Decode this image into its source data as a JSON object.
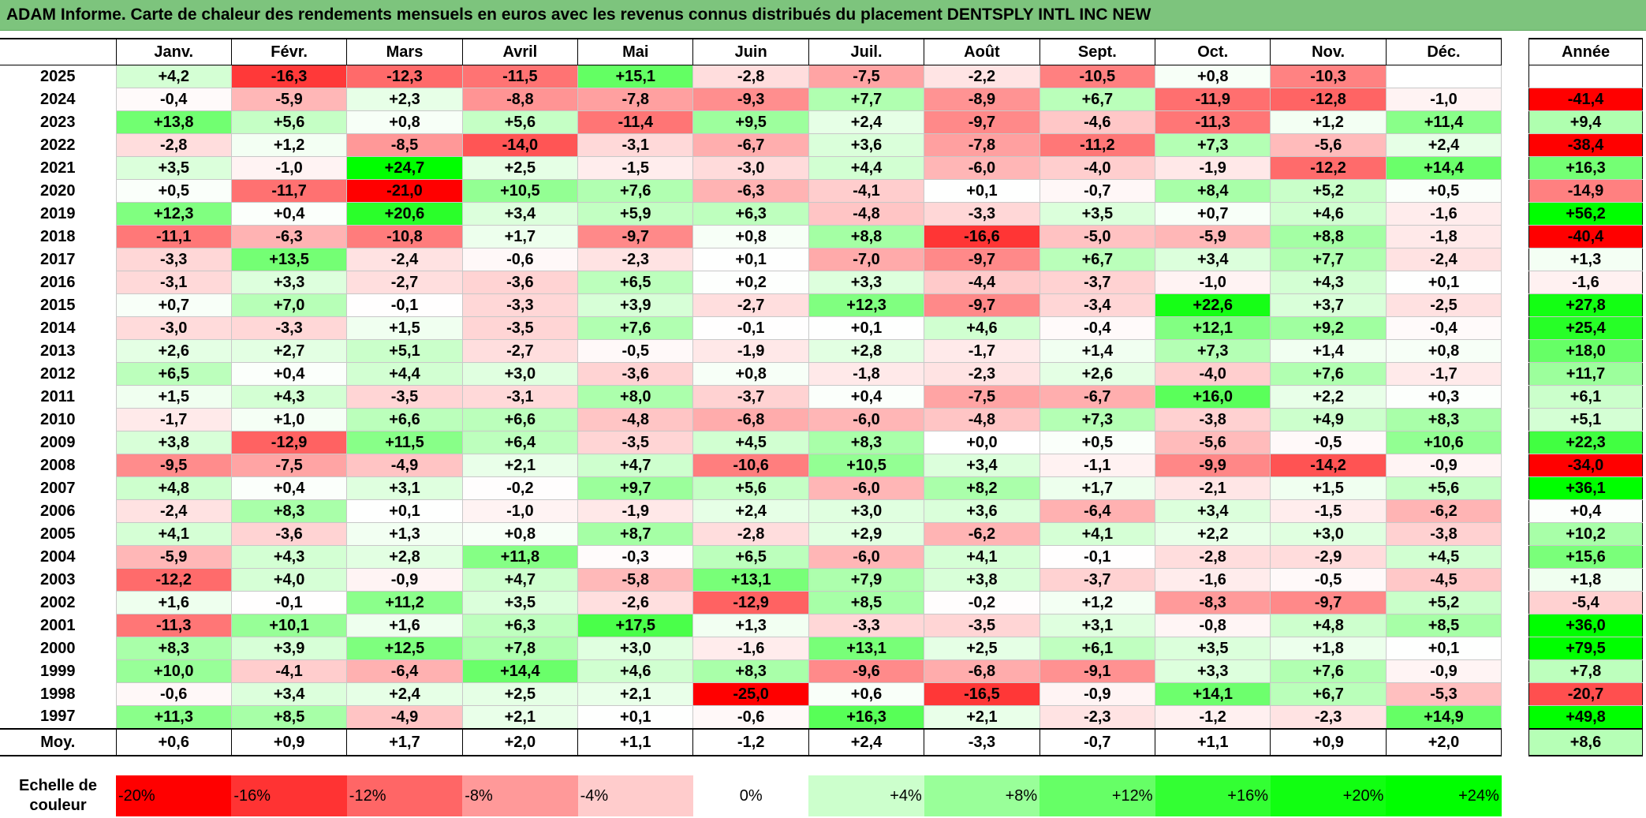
{
  "title": "ADAM Informe. Carte de chaleur des rendements mensuels en euros avec les revenus connus distribués du placement DENTSPLY INTL INC NEW",
  "chart_data": {
    "type": "heatmap",
    "title": "ADAM Informe. Carte de chaleur des rendements mensuels en euros avec les revenus connus distribués du placement DENTSPLY INTL INC NEW",
    "columns": [
      "Janv.",
      "Févr.",
      "Mars",
      "Avril",
      "Mai",
      "Juin",
      "Juil.",
      "Août",
      "Sept.",
      "Oct.",
      "Nov.",
      "Déc."
    ],
    "annual_header": "Année",
    "rows": [
      {
        "year": "2025",
        "values": [
          "+4,2",
          "-16,3",
          "-12,3",
          "-11,5",
          "+15,1",
          "-2,8",
          "-7,5",
          "-2,2",
          "-10,5",
          "+0,8",
          "-10,3",
          ""
        ],
        "annual": ""
      },
      {
        "year": "2024",
        "values": [
          "-0,4",
          "-5,9",
          "+2,3",
          "-8,8",
          "-7,8",
          "-9,3",
          "+7,7",
          "-8,9",
          "+6,7",
          "-11,9",
          "-12,8",
          "-1,0"
        ],
        "annual": "-41,4"
      },
      {
        "year": "2023",
        "values": [
          "+13,8",
          "+5,6",
          "+0,8",
          "+5,6",
          "-11,4",
          "+9,5",
          "+2,4",
          "-9,7",
          "-4,6",
          "-11,3",
          "+1,2",
          "+11,4"
        ],
        "annual": "+9,4"
      },
      {
        "year": "2022",
        "values": [
          "-2,8",
          "+1,2",
          "-8,5",
          "-14,0",
          "-3,1",
          "-6,7",
          "+3,6",
          "-7,8",
          "-11,2",
          "+7,3",
          "-5,6",
          "+2,4"
        ],
        "annual": "-38,4"
      },
      {
        "year": "2021",
        "values": [
          "+3,5",
          "-1,0",
          "+24,7",
          "+2,5",
          "-1,5",
          "-3,0",
          "+4,4",
          "-6,0",
          "-4,0",
          "-1,9",
          "-12,2",
          "+14,4"
        ],
        "annual": "+16,3"
      },
      {
        "year": "2020",
        "values": [
          "+0,5",
          "-11,7",
          "-21,0",
          "+10,5",
          "+7,6",
          "-6,3",
          "-4,1",
          "+0,1",
          "-0,7",
          "+8,4",
          "+5,2",
          "+0,5"
        ],
        "annual": "-14,9"
      },
      {
        "year": "2019",
        "values": [
          "+12,3",
          "+0,4",
          "+20,6",
          "+3,4",
          "+5,9",
          "+6,3",
          "-4,8",
          "-3,3",
          "+3,5",
          "+0,7",
          "+4,6",
          "-1,6"
        ],
        "annual": "+56,2"
      },
      {
        "year": "2018",
        "values": [
          "-11,1",
          "-6,3",
          "-10,8",
          "+1,7",
          "-9,7",
          "+0,8",
          "+8,8",
          "-16,6",
          "-5,0",
          "-5,9",
          "+8,8",
          "-1,8"
        ],
        "annual": "-40,4"
      },
      {
        "year": "2017",
        "values": [
          "-3,3",
          "+13,5",
          "-2,4",
          "-0,6",
          "-2,3",
          "+0,1",
          "-7,0",
          "-9,7",
          "+6,7",
          "+3,4",
          "+7,7",
          "-2,4"
        ],
        "annual": "+1,3"
      },
      {
        "year": "2016",
        "values": [
          "-3,1",
          "+3,3",
          "-2,7",
          "-3,6",
          "+6,5",
          "+0,2",
          "+3,3",
          "-4,4",
          "-3,7",
          "-1,0",
          "+4,3",
          "+0,1"
        ],
        "annual": "-1,6"
      },
      {
        "year": "2015",
        "values": [
          "+0,7",
          "+7,0",
          "-0,1",
          "-3,3",
          "+3,9",
          "-2,7",
          "+12,3",
          "-9,7",
          "-3,4",
          "+22,6",
          "+3,7",
          "-2,5"
        ],
        "annual": "+27,8"
      },
      {
        "year": "2014",
        "values": [
          "-3,0",
          "-3,3",
          "+1,5",
          "-3,5",
          "+7,6",
          "-0,1",
          "+0,1",
          "+4,6",
          "-0,4",
          "+12,1",
          "+9,2",
          "-0,4"
        ],
        "annual": "+25,4"
      },
      {
        "year": "2013",
        "values": [
          "+2,6",
          "+2,7",
          "+5,1",
          "-2,7",
          "-0,5",
          "-1,9",
          "+2,8",
          "-1,7",
          "+1,4",
          "+7,3",
          "+1,4",
          "+0,8"
        ],
        "annual": "+18,0"
      },
      {
        "year": "2012",
        "values": [
          "+6,5",
          "+0,4",
          "+4,4",
          "+3,0",
          "-3,6",
          "+0,8",
          "-1,8",
          "-2,3",
          "+2,6",
          "-4,0",
          "+7,6",
          "-1,7"
        ],
        "annual": "+11,7"
      },
      {
        "year": "2011",
        "values": [
          "+1,5",
          "+4,3",
          "-3,5",
          "-3,1",
          "+8,0",
          "-3,7",
          "+0,4",
          "-7,5",
          "-6,7",
          "+16,0",
          "+2,2",
          "+0,3"
        ],
        "annual": "+6,1"
      },
      {
        "year": "2010",
        "values": [
          "-1,7",
          "+1,0",
          "+6,6",
          "+6,6",
          "-4,8",
          "-6,8",
          "-6,0",
          "-4,8",
          "+7,3",
          "-3,8",
          "+4,9",
          "+8,3"
        ],
        "annual": "+5,1"
      },
      {
        "year": "2009",
        "values": [
          "+3,8",
          "-12,9",
          "+11,5",
          "+6,4",
          "-3,5",
          "+4,5",
          "+8,3",
          "+0,0",
          "+0,5",
          "-5,6",
          "-0,5",
          "+10,6"
        ],
        "annual": "+22,3"
      },
      {
        "year": "2008",
        "values": [
          "-9,5",
          "-7,5",
          "-4,9",
          "+2,1",
          "+4,7",
          "-10,6",
          "+10,5",
          "+3,4",
          "-1,1",
          "-9,9",
          "-14,2",
          "-0,9"
        ],
        "annual": "-34,0"
      },
      {
        "year": "2007",
        "values": [
          "+4,8",
          "+0,4",
          "+3,1",
          "-0,2",
          "+9,7",
          "+5,6",
          "-6,0",
          "+8,2",
          "+1,7",
          "-2,1",
          "+1,5",
          "+5,6"
        ],
        "annual": "+36,1"
      },
      {
        "year": "2006",
        "values": [
          "-2,4",
          "+8,3",
          "+0,1",
          "-1,0",
          "-1,9",
          "+2,4",
          "+3,0",
          "+3,6",
          "-6,4",
          "+3,4",
          "-1,5",
          "-6,2"
        ],
        "annual": "+0,4"
      },
      {
        "year": "2005",
        "values": [
          "+4,1",
          "-3,6",
          "+1,3",
          "+0,8",
          "+8,7",
          "-2,8",
          "+2,9",
          "-6,2",
          "+4,1",
          "+2,2",
          "+3,0",
          "-3,8"
        ],
        "annual": "+10,2"
      },
      {
        "year": "2004",
        "values": [
          "-5,9",
          "+4,3",
          "+2,8",
          "+11,8",
          "-0,3",
          "+6,5",
          "-6,0",
          "+4,1",
          "-0,1",
          "-2,8",
          "-2,9",
          "+4,5"
        ],
        "annual": "+15,6"
      },
      {
        "year": "2003",
        "values": [
          "-12,2",
          "+4,0",
          "-0,9",
          "+4,7",
          "-5,8",
          "+13,1",
          "+7,9",
          "+3,8",
          "-3,7",
          "-1,6",
          "-0,5",
          "-4,5"
        ],
        "annual": "+1,8"
      },
      {
        "year": "2002",
        "values": [
          "+1,6",
          "-0,1",
          "+11,2",
          "+3,5",
          "-2,6",
          "-12,9",
          "+8,5",
          "-0,2",
          "+1,2",
          "-8,3",
          "-9,7",
          "+5,2"
        ],
        "annual": "-5,4"
      },
      {
        "year": "2001",
        "values": [
          "-11,3",
          "+10,1",
          "+1,6",
          "+6,3",
          "+17,5",
          "+1,3",
          "-3,3",
          "-3,5",
          "+3,1",
          "-0,8",
          "+4,8",
          "+8,5"
        ],
        "annual": "+36,0"
      },
      {
        "year": "2000",
        "values": [
          "+8,3",
          "+3,9",
          "+12,5",
          "+7,8",
          "+3,0",
          "-1,6",
          "+13,1",
          "+2,5",
          "+6,1",
          "+3,5",
          "+1,8",
          "+0,1"
        ],
        "annual": "+79,5"
      },
      {
        "year": "1999",
        "values": [
          "+10,0",
          "-4,1",
          "-6,4",
          "+14,4",
          "+4,6",
          "+8,3",
          "-9,6",
          "-6,8",
          "-9,1",
          "+3,3",
          "+7,6",
          "-0,9"
        ],
        "annual": "+7,8"
      },
      {
        "year": "1998",
        "values": [
          "-0,6",
          "+3,4",
          "+2,4",
          "+2,5",
          "+2,1",
          "-25,0",
          "+0,6",
          "-16,5",
          "-0,9",
          "+14,1",
          "+6,7",
          "-5,3"
        ],
        "annual": "-20,7"
      },
      {
        "year": "1997",
        "values": [
          "+11,3",
          "+8,5",
          "-4,9",
          "+2,1",
          "+0,1",
          "-0,6",
          "+16,3",
          "+2,1",
          "-2,3",
          "-1,2",
          "-2,3",
          "+14,9"
        ],
        "annual": "+49,8"
      }
    ],
    "average": {
      "label": "Moy.",
      "values": [
        "+0,6",
        "+0,9",
        "+1,7",
        "+2,0",
        "+1,1",
        "-1,2",
        "+2,4",
        "-3,3",
        "-0,7",
        "+1,1",
        "+0,9",
        "+2,0"
      ],
      "annual": "+8,6"
    },
    "color_scale": {
      "label": "Echelle de couleur",
      "stops": [
        "-20%",
        "-16%",
        "-12%",
        "-8%",
        "-4%",
        "0%",
        "+4%",
        "+8%",
        "+12%",
        "+16%",
        "+20%",
        "+24%"
      ],
      "colors": [
        "#ff0000",
        "#ff3333",
        "#ff6666",
        "#ff9999",
        "#ffcccc",
        "#ffffff",
        "#ccffcc",
        "#99ff99",
        "#66ff66",
        "#33ff33",
        "#11ff11",
        "#00ff00"
      ]
    }
  }
}
